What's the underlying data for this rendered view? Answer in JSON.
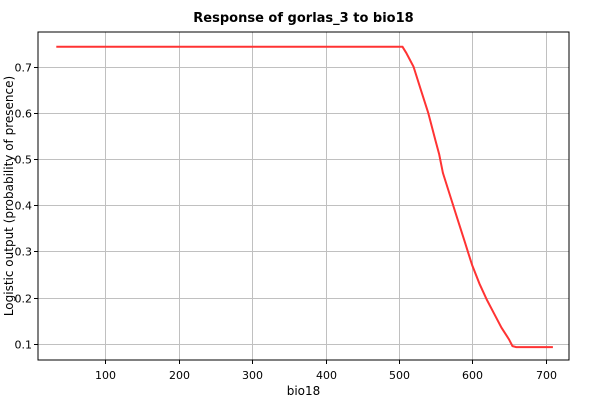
{
  "chart_data": {
    "type": "line",
    "title": "Response of gorlas_3 to bio18",
    "xlabel": "bio18",
    "ylabel": "Logistic output (probability of presence)",
    "xlim": [
      8,
      732
    ],
    "ylim": [
      0.065,
      0.775
    ],
    "x_ticks": [
      100,
      200,
      300,
      400,
      500,
      600,
      700
    ],
    "y_ticks": [
      0.1,
      0.2,
      0.3,
      0.4,
      0.5,
      0.6,
      0.7
    ],
    "grid": true,
    "line_color": "#ff3333",
    "series": [
      {
        "x": [
          33,
          100,
          200,
          300,
          400,
          505,
          510,
          520,
          530,
          540,
          550,
          555,
          560,
          570,
          580,
          590,
          595,
          600,
          610,
          620,
          630,
          640,
          650,
          655,
          660,
          680,
          700,
          710
        ],
        "y": [
          0.743,
          0.743,
          0.743,
          0.743,
          0.743,
          0.743,
          0.73,
          0.7,
          0.65,
          0.6,
          0.54,
          0.51,
          0.47,
          0.42,
          0.37,
          0.32,
          0.295,
          0.27,
          0.23,
          0.195,
          0.165,
          0.135,
          0.11,
          0.095,
          0.093,
          0.093,
          0.093,
          0.093
        ]
      }
    ]
  }
}
